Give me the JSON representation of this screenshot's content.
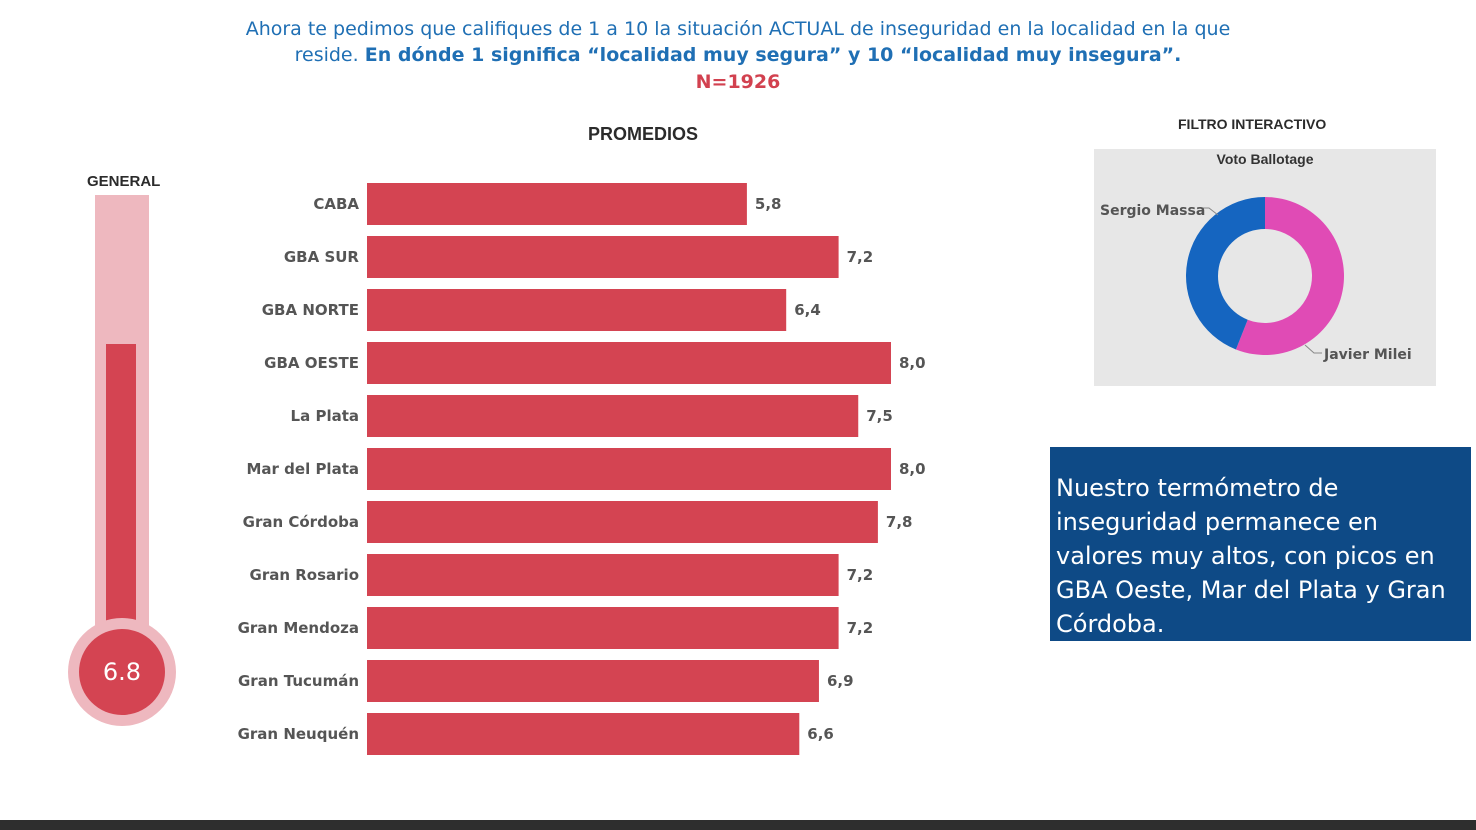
{
  "header": {
    "question_plain": "Ahora te pedimos que califiques de 1 a 10 la situación ACTUAL de inseguridad en la localidad en la que",
    "question_plain2": "reside.",
    "question_bold": "En dónde 1 significa “localidad muy segura” y 10 “localidad muy insegura”.",
    "sample": "N=1926"
  },
  "general": {
    "title": "GENERAL",
    "value_text": "6.8",
    "value": 6.8,
    "scale_max": 10
  },
  "chart_data": {
    "type": "bar",
    "orientation": "horizontal",
    "title": "PROMEDIOS",
    "categories": [
      "CABA",
      "GBA SUR",
      "GBA NORTE",
      "GBA OESTE",
      "La Plata",
      "Mar del Plata",
      "Gran Córdoba",
      "Gran Rosario",
      "Gran Mendoza",
      "Gran Tucumán",
      "Gran Neuquén"
    ],
    "values": [
      5.8,
      7.2,
      6.4,
      8.0,
      7.5,
      8.0,
      7.8,
      7.2,
      7.2,
      6.9,
      6.6
    ],
    "value_labels": [
      "5,8",
      "7,2",
      "6,4",
      "8,0",
      "7,5",
      "8,0",
      "7,8",
      "7,2",
      "7,2",
      "6,9",
      "6,6"
    ],
    "color": "#d44452"
  },
  "filter": {
    "title": "FILTRO INTERACTIVO",
    "panel_title": "Voto Ballotage",
    "donut": {
      "segments": [
        {
          "label": "Sergio Massa",
          "share": 0.44,
          "color": "#1565c0"
        },
        {
          "label": "Javier Milei",
          "share": 0.56,
          "color": "#e04bb5"
        }
      ]
    }
  },
  "summary": {
    "text": "Nuestro termómetro de inseguridad permanece en valores muy altos, con picos en GBA Oeste, Mar del Plata y Gran Córdoba."
  },
  "colors": {
    "accent_red": "#d44452",
    "light_red": "#eeb8bf",
    "header_blue": "#1f6fb4",
    "box_blue": "#0e4a86"
  }
}
